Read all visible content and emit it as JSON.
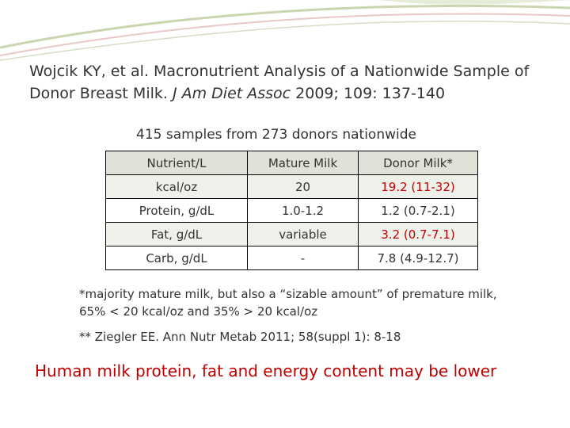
{
  "citation": {
    "text": "Wojcik KY, et al. Macronutrient Analysis of a Nationwide Sample of Donor Breast Milk.",
    "journal": "J Am Diet Assoc",
    "details": "2009; 109: 137-140"
  },
  "subtitle": "415 samples from 273 donors nationwide",
  "table": {
    "header": [
      "Nutrient/L",
      "Mature Milk",
      "Donor Milk*"
    ],
    "rows": [
      [
        "kcal/oz",
        "20",
        "19.2 (11-32)"
      ],
      [
        "Protein, g/dL",
        "1.0-1.2",
        "1.2 (0.7-2.1)"
      ],
      [
        "Fat, g/dL",
        "variable",
        "3.2 (0.7-7.1)"
      ],
      [
        "Carb, g/dL",
        "-",
        "7.8 (4.9-12.7)"
      ]
    ]
  },
  "footnotes": [
    "*majority mature milk, but also a “sizable amount” of premature milk, 65% < 20 kcal/oz and 35% > 20 kcal/oz",
    "** Ziegler EE. Ann Nutr Metab 2011; 58(suppl 1): 8-18"
  ],
  "conclusion": "Human milk protein, fat and energy content may be lower"
}
